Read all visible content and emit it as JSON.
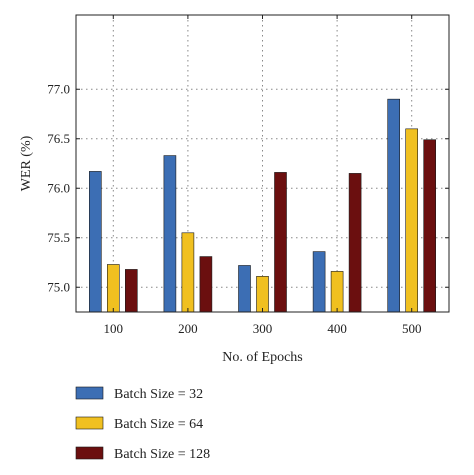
{
  "chart_data": {
    "type": "bar",
    "xlabel": "No. of Epochs",
    "ylabel": "WER (%)",
    "categories": [
      "100",
      "200",
      "300",
      "400",
      "500"
    ],
    "ylim": [
      74.75,
      77.75
    ],
    "yticks": [
      75.0,
      75.5,
      76.0,
      76.5,
      77.0
    ],
    "ytick_labels": [
      "75.0",
      "75.5",
      "76.0",
      "76.5",
      "77.0"
    ],
    "grid": true,
    "legend_position": "bottom",
    "series": [
      {
        "name": "Batch Size = 32",
        "color": "#3c6eb4",
        "values": [
          76.17,
          76.33,
          75.22,
          75.36,
          76.9
        ]
      },
      {
        "name": "Batch Size = 64",
        "color": "#f0c020",
        "values": [
          75.23,
          75.55,
          75.11,
          75.16,
          76.6
        ]
      },
      {
        "name": "Batch Size = 128",
        "color": "#6b0f0f",
        "values": [
          75.18,
          75.31,
          76.16,
          76.15,
          76.49
        ]
      }
    ]
  }
}
